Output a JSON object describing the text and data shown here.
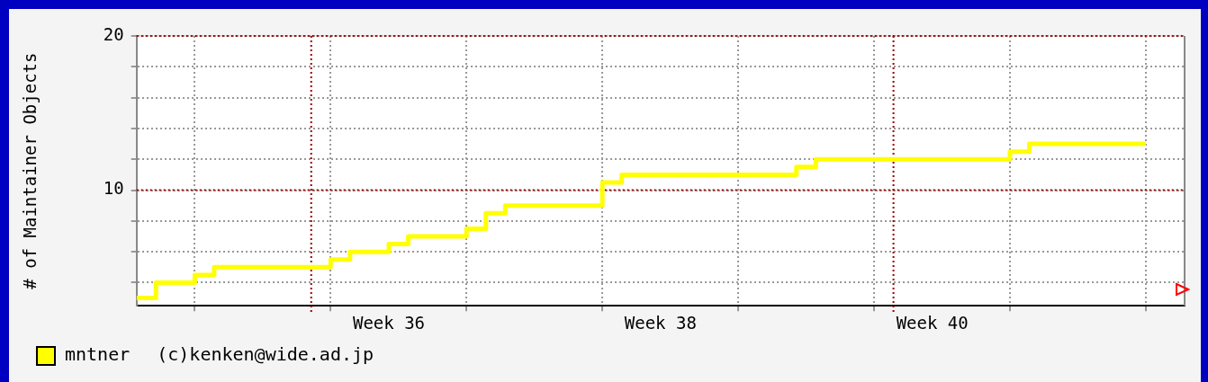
{
  "chart_data": {
    "type": "step",
    "ylabel": "# of Maintainer Objects",
    "x": [
      "--08-23",
      "--08-24",
      "--08-26",
      "--08-27",
      "--09-02",
      "--09-03",
      "--09-05",
      "--09-06",
      "--09-09",
      "--09-10",
      "--09-11",
      "--09-16",
      "--09-17",
      "--09-26",
      "--09-27",
      "--10-07",
      "--10-08",
      "--10-14"
    ],
    "series": [
      {
        "name": "mntner",
        "color": "#ffff00",
        "values": [
          3,
          4,
          4.5,
          5,
          5.5,
          6,
          6.5,
          7,
          7.5,
          8.5,
          9,
          10.5,
          11,
          11.5,
          12,
          12.5,
          13,
          13
        ]
      }
    ],
    "xlim": [
      "--08-23",
      "--10-16"
    ],
    "xticks": [
      {
        "value": "--08-26",
        "label": null
      },
      {
        "value": "--09-02",
        "label": null
      },
      {
        "value": "--09-05",
        "label": "Week 36"
      },
      {
        "value": "--09-09",
        "label": null
      },
      {
        "value": "--09-16",
        "label": null
      },
      {
        "value": "--09-19",
        "label": "Week 38"
      },
      {
        "value": "--09-23",
        "label": null
      },
      {
        "value": "--09-30",
        "label": null
      },
      {
        "value": "--10-03",
        "label": "Week 40"
      },
      {
        "value": "--10-07",
        "label": null
      },
      {
        "value": "--10-14",
        "label": null
      }
    ],
    "ylim": [
      2.5,
      20
    ],
    "yticks": [
      {
        "value": 4,
        "label": null
      },
      {
        "value": 6,
        "label": null
      },
      {
        "value": 8,
        "label": null
      },
      10,
      {
        "value": 12,
        "label": null
      },
      {
        "value": 14,
        "label": null
      },
      {
        "value": 16,
        "label": null
      },
      {
        "value": 18,
        "label": null
      },
      20
    ],
    "ref_lines": [
      {
        "axis": "y",
        "value": 10,
        "color": "#990000",
        "line_style": "dotted"
      },
      {
        "axis": "y",
        "value": 20,
        "color": "#990000",
        "line_style": "dotted"
      },
      {
        "axis": "x",
        "value": "--09-01",
        "color": "#990000",
        "line_style": "dotted"
      },
      {
        "axis": "x",
        "value": "--10-01",
        "color": "#990000",
        "line_style": "dotted"
      }
    ],
    "grid": true,
    "legend": "bottom left",
    "marker": "none",
    "annotations": [
      "(c)kenken@wide.ad.jp"
    ]
  }
}
